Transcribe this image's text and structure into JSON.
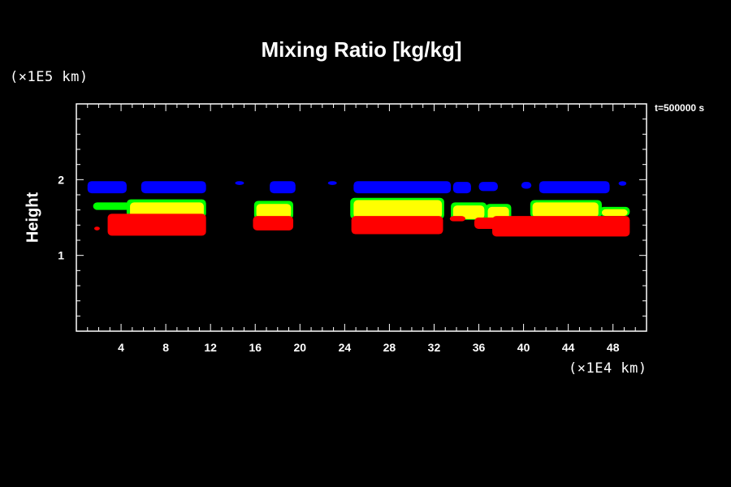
{
  "title": "Mixing Ratio [kg/kg]",
  "y_unit": "(×1E5 km)",
  "x_unit": "(×1E4 km)",
  "time_label": "t=500000 s",
  "ylabel": "Height",
  "chart_data": {
    "type": "heatmap",
    "title": "Mixing Ratio [kg/kg]",
    "xlabel": "(×1E4 km)",
    "ylabel": "Height",
    "y_unit": "(×1E5 km)",
    "annotation": "t=500000 s",
    "xlim": [
      0,
      51
    ],
    "ylim": [
      0,
      3
    ],
    "x_ticks": [
      4,
      8,
      12,
      16,
      20,
      24,
      28,
      32,
      36,
      40,
      44,
      48
    ],
    "y_ticks": [
      1,
      2
    ],
    "grid": false,
    "colors": {
      "blue": "#0000ff",
      "green": "#00ff00",
      "yellow": "#ffff00",
      "red": "#ff0000"
    },
    "regions": [
      {
        "level": "blue",
        "x0": 1.0,
        "x1": 4.5,
        "y0": 1.82,
        "y1": 1.98
      },
      {
        "level": "blue",
        "x0": 5.8,
        "x1": 11.6,
        "y0": 1.82,
        "y1": 1.98
      },
      {
        "level": "blue",
        "x0": 14.2,
        "x1": 15.0,
        "y0": 1.93,
        "y1": 1.98
      },
      {
        "level": "blue",
        "x0": 17.3,
        "x1": 19.6,
        "y0": 1.82,
        "y1": 1.98
      },
      {
        "level": "blue",
        "x0": 22.5,
        "x1": 23.3,
        "y0": 1.93,
        "y1": 1.98
      },
      {
        "level": "blue",
        "x0": 24.8,
        "x1": 33.5,
        "y0": 1.82,
        "y1": 1.98
      },
      {
        "level": "blue",
        "x0": 33.7,
        "x1": 35.3,
        "y0": 1.82,
        "y1": 1.97
      },
      {
        "level": "blue",
        "x0": 36.0,
        "x1": 37.7,
        "y0": 1.85,
        "y1": 1.97
      },
      {
        "level": "blue",
        "x0": 39.8,
        "x1": 40.7,
        "y0": 1.88,
        "y1": 1.97
      },
      {
        "level": "blue",
        "x0": 41.4,
        "x1": 47.7,
        "y0": 1.82,
        "y1": 1.98
      },
      {
        "level": "blue",
        "x0": 48.5,
        "x1": 49.2,
        "y0": 1.92,
        "y1": 1.98
      },
      {
        "level": "green",
        "x0": 1.5,
        "x1": 4.8,
        "y0": 1.6,
        "y1": 1.7
      },
      {
        "level": "green",
        "x0": 4.5,
        "x1": 11.6,
        "y0": 1.5,
        "y1": 1.74
      },
      {
        "level": "green",
        "x0": 15.9,
        "x1": 19.4,
        "y0": 1.48,
        "y1": 1.72
      },
      {
        "level": "green",
        "x0": 24.5,
        "x1": 32.9,
        "y0": 1.48,
        "y1": 1.76
      },
      {
        "level": "green",
        "x0": 33.5,
        "x1": 36.7,
        "y0": 1.47,
        "y1": 1.7
      },
      {
        "level": "green",
        "x0": 36.6,
        "x1": 38.9,
        "y0": 1.44,
        "y1": 1.68
      },
      {
        "level": "green",
        "x0": 40.6,
        "x1": 47.0,
        "y0": 1.5,
        "y1": 1.73
      },
      {
        "level": "green",
        "x0": 46.8,
        "x1": 49.5,
        "y0": 1.52,
        "y1": 1.64
      },
      {
        "level": "yellow",
        "x0": 4.8,
        "x1": 11.4,
        "y0": 1.5,
        "y1": 1.7
      },
      {
        "level": "yellow",
        "x0": 16.1,
        "x1": 19.2,
        "y0": 1.49,
        "y1": 1.68
      },
      {
        "level": "yellow",
        "x0": 24.8,
        "x1": 32.7,
        "y0": 1.49,
        "y1": 1.73
      },
      {
        "level": "yellow",
        "x0": 33.7,
        "x1": 36.5,
        "y0": 1.48,
        "y1": 1.66
      },
      {
        "level": "yellow",
        "x0": 36.8,
        "x1": 38.7,
        "y0": 1.45,
        "y1": 1.64
      },
      {
        "level": "yellow",
        "x0": 40.8,
        "x1": 46.7,
        "y0": 1.5,
        "y1": 1.7
      },
      {
        "level": "yellow",
        "x0": 47.0,
        "x1": 49.3,
        "y0": 1.52,
        "y1": 1.61
      },
      {
        "level": "red",
        "x0": 2.8,
        "x1": 11.6,
        "y0": 1.26,
        "y1": 1.55
      },
      {
        "level": "red",
        "x0": 1.6,
        "x1": 2.1,
        "y0": 1.33,
        "y1": 1.38
      },
      {
        "level": "red",
        "x0": 15.8,
        "x1": 19.4,
        "y0": 1.33,
        "y1": 1.52
      },
      {
        "level": "red",
        "x0": 24.6,
        "x1": 32.8,
        "y0": 1.28,
        "y1": 1.52
      },
      {
        "level": "red",
        "x0": 33.4,
        "x1": 34.8,
        "y0": 1.45,
        "y1": 1.52
      },
      {
        "level": "red",
        "x0": 35.6,
        "x1": 38.5,
        "y0": 1.35,
        "y1": 1.5
      },
      {
        "level": "red",
        "x0": 37.2,
        "x1": 49.5,
        "y0": 1.25,
        "y1": 1.52
      }
    ]
  }
}
